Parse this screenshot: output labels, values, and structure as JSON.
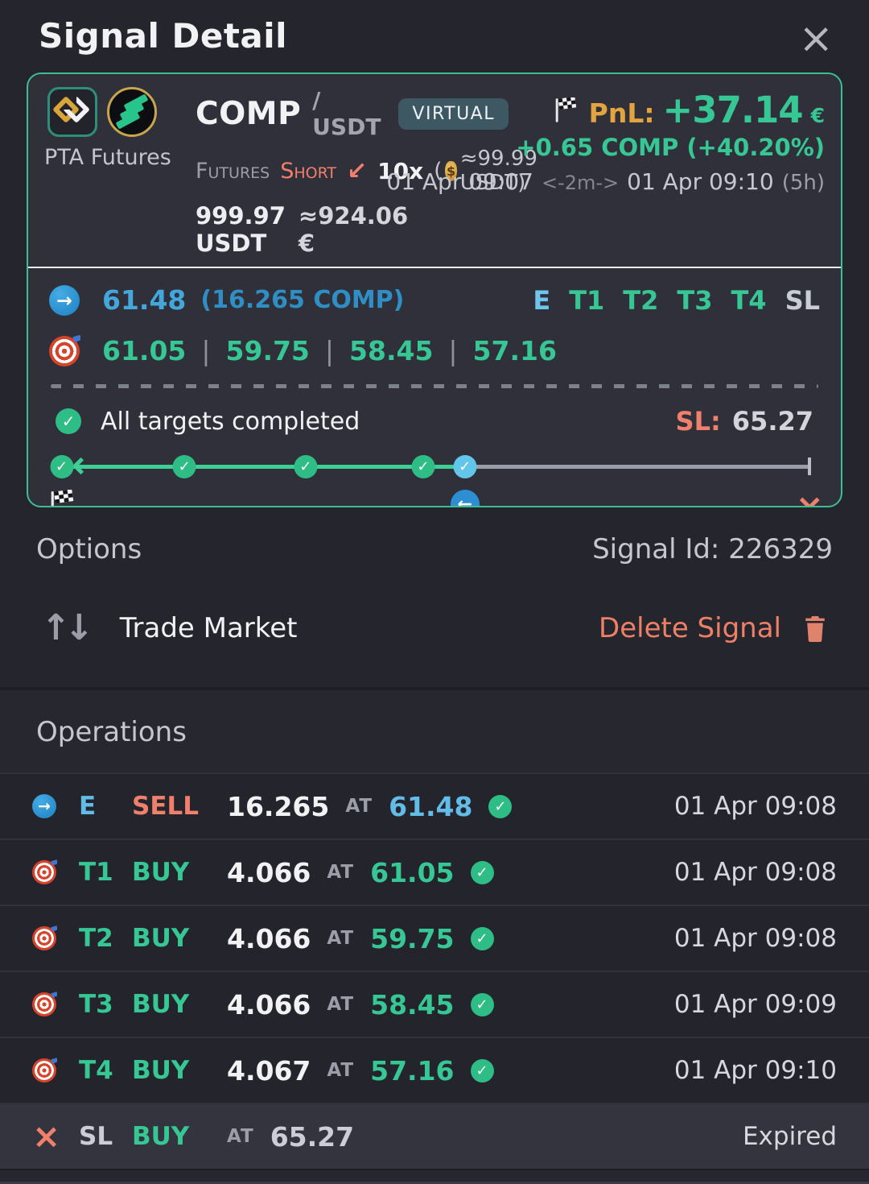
{
  "header": {
    "title": "Signal Detail",
    "close": "×"
  },
  "signal_card": {
    "provider_name": "PTA Futures",
    "pair": {
      "base": "COMP",
      "quote": "/ USDT"
    },
    "badge": "VIRTUAL",
    "market_type": "Futures",
    "direction": "Short",
    "direction_arrow": "↙",
    "leverage": "10x",
    "margin_prefix": "(",
    "margin_text": "≈99.99 USDT)",
    "position_size": "999.97 USDT",
    "position_size_eur": "≈924.06 €",
    "pnl": {
      "label": "PnL:",
      "value": "+37.14",
      "currency": "€",
      "change": "+0.65 COMP",
      "change_pct": "(+40.20%)"
    },
    "dates": {
      "start": "01 Apr 09:07",
      "separator": "<-2m->",
      "end": "01 Apr 09:10",
      "duration": "(5h)"
    },
    "entry": {
      "price": "61.48",
      "amount": "(16.265 COMP)"
    },
    "legend": {
      "entry": "E",
      "targets": [
        "T1",
        "T2",
        "T3",
        "T4"
      ],
      "sl": "SL"
    },
    "targets": [
      "61.05",
      "59.75",
      "58.45",
      "57.16"
    ],
    "target_separator": "|",
    "status": {
      "text": "All targets completed",
      "sl_label": "SL:",
      "sl_value": "65.27"
    },
    "timeline": {
      "progress_start_pct": 0.5,
      "progress_end_pct": 54,
      "track_end_pct": 99.5,
      "points": [
        {
          "pos_pct": 0.8,
          "circle": "green",
          "icon": "flag"
        },
        {
          "pos_pct": 17,
          "circle": "green",
          "icon": "target"
        },
        {
          "pos_pct": 33,
          "circle": "green",
          "icon": "target"
        },
        {
          "pos_pct": 48.5,
          "circle": "green",
          "icon": "target"
        },
        {
          "pos_pct": 54,
          "circle": "blue",
          "icon": "arrow-left"
        },
        {
          "pos_pct": 99.5,
          "circle": "end",
          "icon": "cross"
        }
      ]
    }
  },
  "options": {
    "title": "Options",
    "signal_id": "Signal Id: 226329",
    "trade_market": "Trade Market",
    "delete_signal": "Delete Signal"
  },
  "operations": {
    "title": "Operations",
    "rows": [
      {
        "icon": "entry",
        "tag": "E",
        "tag_color": "blue",
        "side": "SELL",
        "side_color": "red",
        "amount": "16.265",
        "at": "AT",
        "price": "61.48",
        "price_color": "blue",
        "status": "check",
        "time": "01 Apr 09:08",
        "highlight": false
      },
      {
        "icon": "target",
        "tag": "T1",
        "tag_color": "green",
        "side": "BUY",
        "side_color": "green",
        "amount": "4.066",
        "at": "AT",
        "price": "61.05",
        "price_color": "green",
        "status": "check",
        "time": "01 Apr 09:08",
        "highlight": false
      },
      {
        "icon": "target",
        "tag": "T2",
        "tag_color": "green",
        "side": "BUY",
        "side_color": "green",
        "amount": "4.066",
        "at": "AT",
        "price": "59.75",
        "price_color": "green",
        "status": "check",
        "time": "01 Apr 09:08",
        "highlight": false
      },
      {
        "icon": "target",
        "tag": "T3",
        "tag_color": "green",
        "side": "BUY",
        "side_color": "green",
        "amount": "4.066",
        "at": "AT",
        "price": "58.45",
        "price_color": "green",
        "status": "check",
        "time": "01 Apr 09:09",
        "highlight": false
      },
      {
        "icon": "target",
        "tag": "T4",
        "tag_color": "green",
        "side": "BUY",
        "side_color": "green",
        "amount": "4.067",
        "at": "AT",
        "price": "57.16",
        "price_color": "green",
        "status": "check",
        "time": "01 Apr 09:10",
        "highlight": false
      },
      {
        "icon": "cross",
        "tag": "SL",
        "tag_color": "gray",
        "side": "BUY",
        "side_color": "green",
        "amount": "",
        "at": "AT",
        "price": "65.27",
        "price_color": "gray",
        "status": "",
        "time": "Expired",
        "highlight": true
      }
    ]
  },
  "colors": {
    "accent_green": "#36c795",
    "accent_blue": "#43a7dc",
    "accent_salmon": "#f0806b",
    "accent_gold": "#e2a43e",
    "card_border": "#3cbd92"
  }
}
